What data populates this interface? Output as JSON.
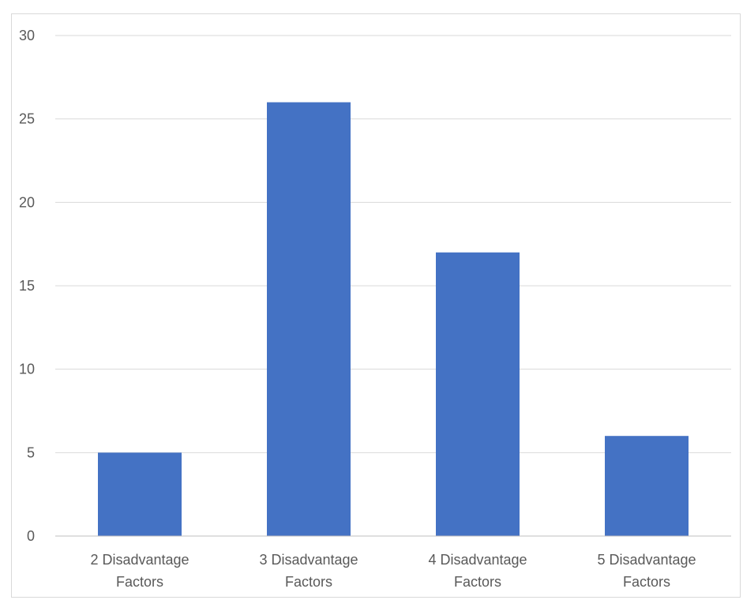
{
  "chart_data": {
    "type": "bar",
    "categories": [
      [
        "2 Disadvantage",
        "Factors"
      ],
      [
        "3 Disadvantage",
        "Factors"
      ],
      [
        "4 Disadvantage",
        "Factors"
      ],
      [
        "5 Disadvantage",
        "Factors"
      ]
    ],
    "values": [
      5,
      26,
      17,
      6
    ],
    "ylim": [
      0,
      30
    ],
    "yticks": [
      0,
      5,
      10,
      15,
      20,
      25,
      30
    ],
    "grid": true,
    "bar_color": "#4472c4",
    "grid_color": "#d9d9d9",
    "axis_color": "#bfbfbf",
    "text_color": "#595959"
  }
}
